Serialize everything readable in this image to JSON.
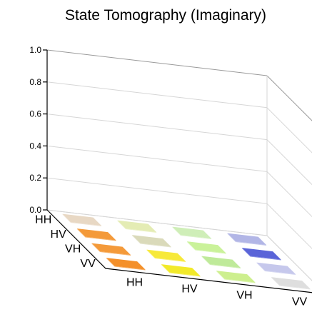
{
  "chart_data": {
    "type": "bar3d",
    "title": "State Tomography (Imaginary)",
    "row_labels": [
      "HH",
      "HV",
      "VH",
      "VV"
    ],
    "col_labels": [
      "HH",
      "HV",
      "VH",
      "VV"
    ],
    "zlim": [
      0.0,
      1.0
    ],
    "zticks": [
      "0.0",
      "0.2",
      "0.4",
      "0.6",
      "0.8",
      "1.0"
    ],
    "grid": true,
    "values": [
      [
        0.0,
        0.0,
        0.0,
        0.0
      ],
      [
        0.0,
        0.0,
        0.0,
        0.0
      ],
      [
        0.0,
        0.0,
        0.0,
        0.0
      ],
      [
        0.0,
        0.0,
        0.0,
        0.0
      ]
    ],
    "colors": [
      [
        "#e8d8c4",
        "#e4ecb4",
        "#cfeeb8",
        "#b2b6e6"
      ],
      [
        "#f49a3a",
        "#dadaba",
        "#caf29a",
        "#5a64d8"
      ],
      [
        "#f49a3a",
        "#f7e93a",
        "#bfea9a",
        "#c6c8ec"
      ],
      [
        "#f4902a",
        "#f2ea2a",
        "#cdef8e",
        "#dedede"
      ]
    ]
  }
}
